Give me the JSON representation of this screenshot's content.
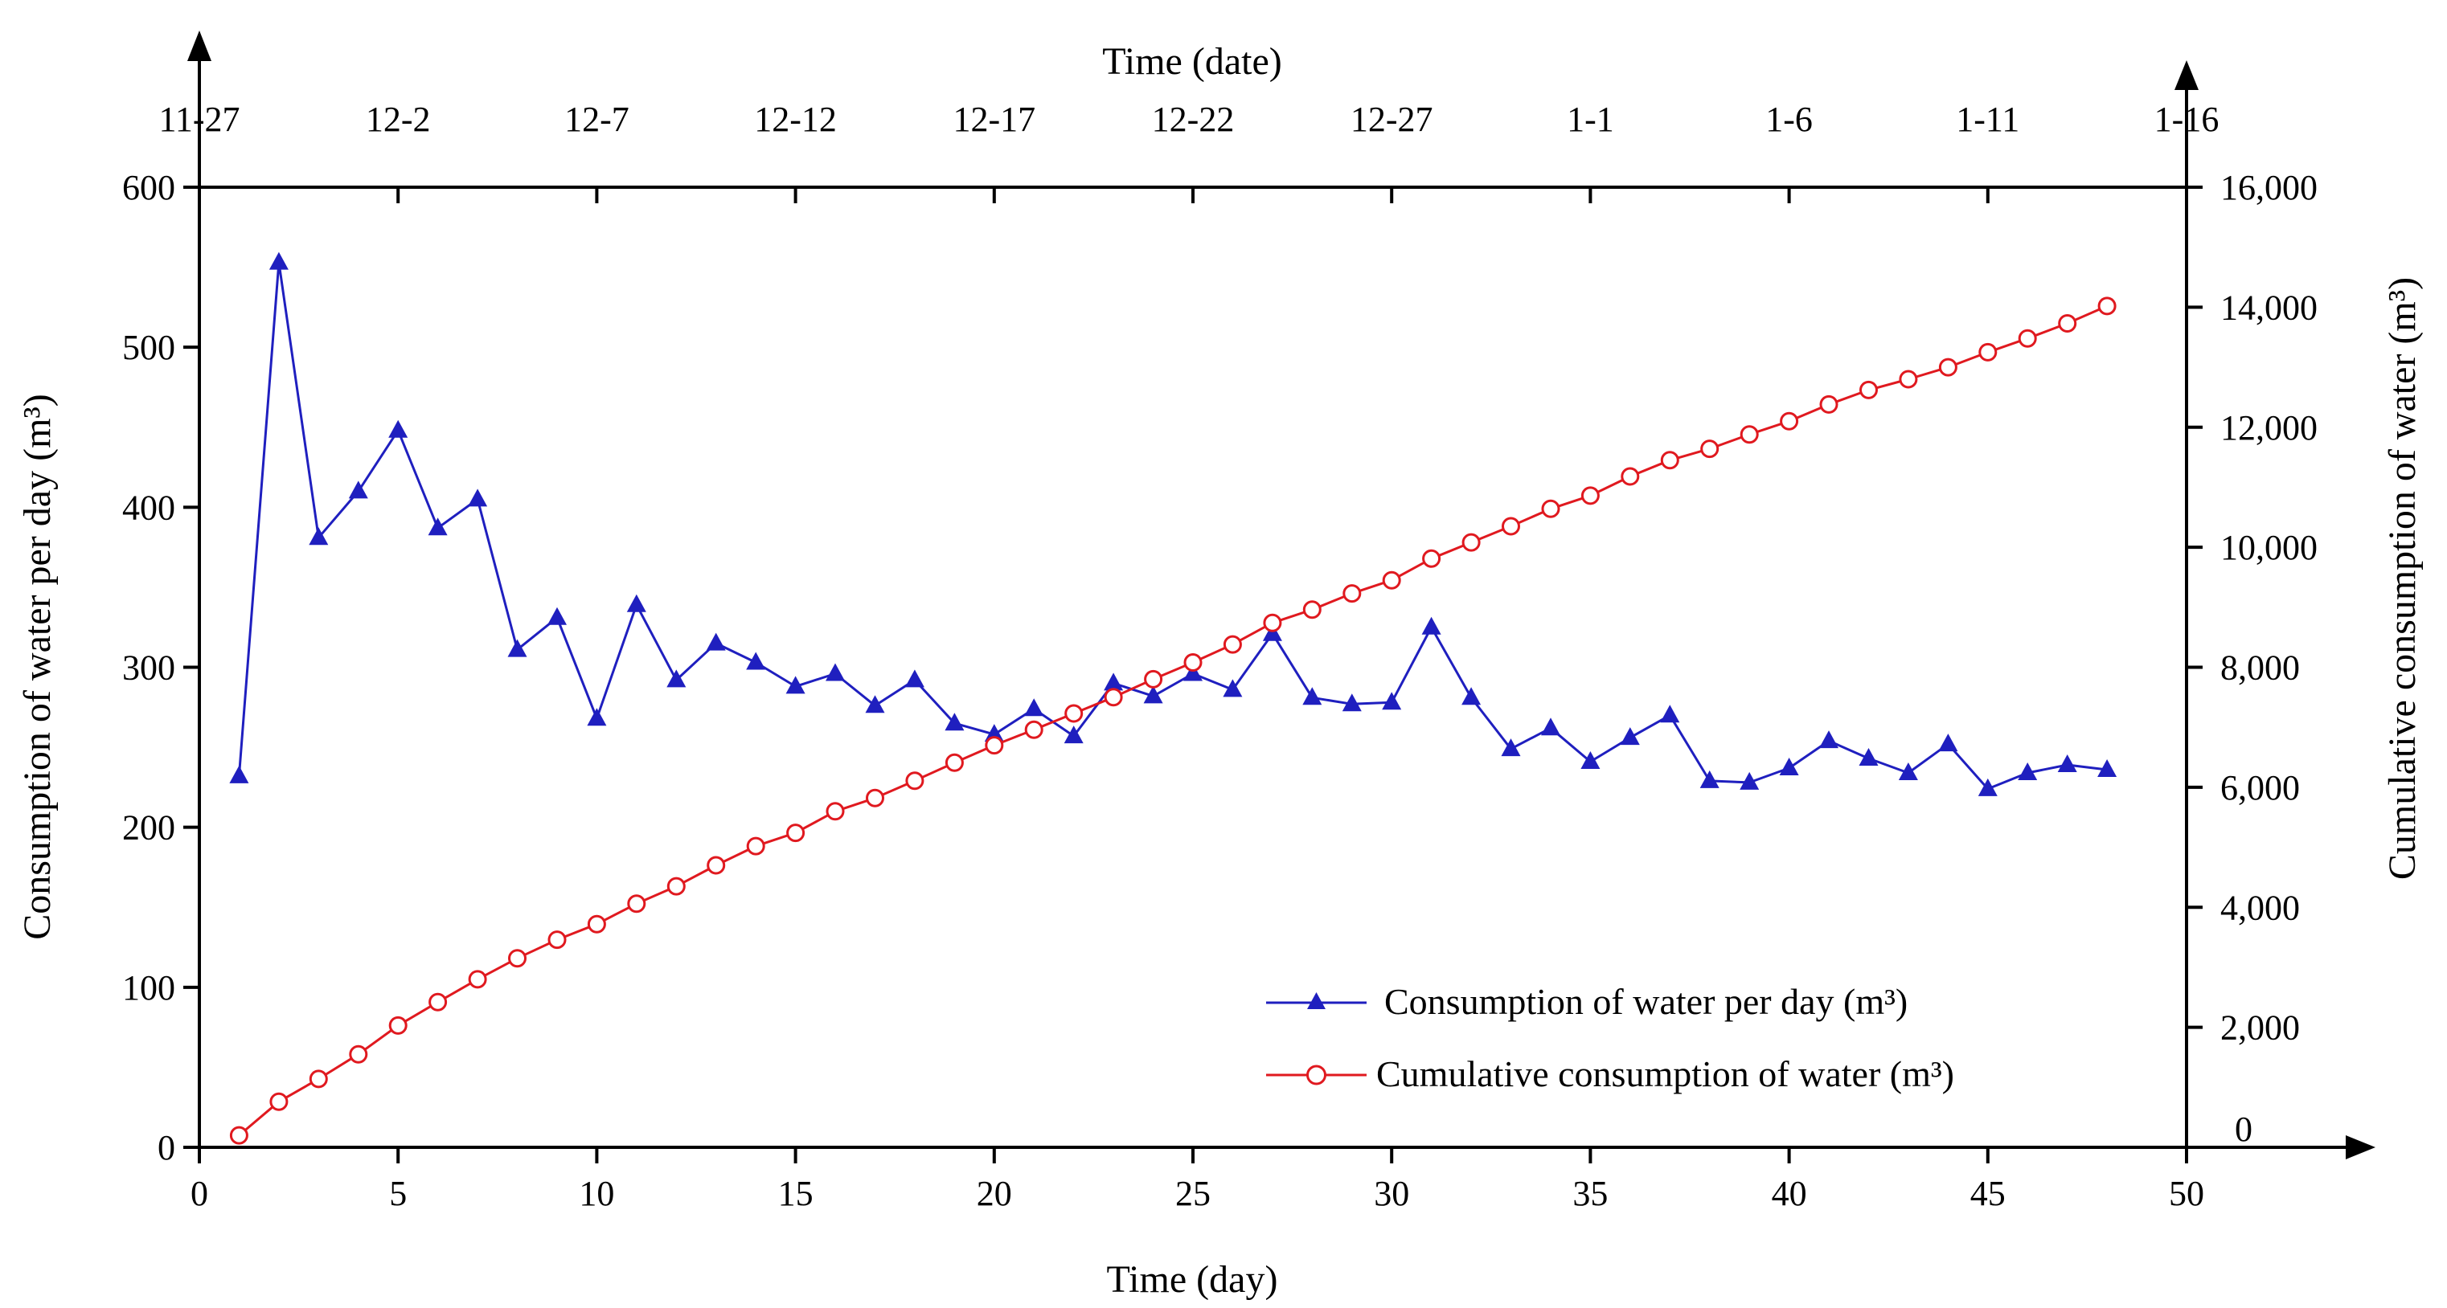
{
  "chart_data": {
    "type": "line",
    "x": [
      1,
      2,
      3,
      4,
      5,
      6,
      7,
      8,
      9,
      10,
      11,
      12,
      13,
      14,
      15,
      16,
      17,
      18,
      19,
      20,
      21,
      22,
      23,
      24,
      25,
      26,
      27,
      28,
      29,
      30,
      31,
      32,
      33,
      34,
      35,
      36,
      37,
      38,
      39,
      40,
      41,
      42,
      43,
      44,
      45,
      46,
      47,
      48
    ],
    "series": [
      {
        "name": "Consumption of water per day (m³)",
        "axis": "left",
        "color": "#1f1fbf",
        "marker": "triangle",
        "values": [
          232,
          553,
          381,
          410,
          448,
          387,
          405,
          311,
          331,
          268,
          339,
          292,
          315,
          303,
          288,
          296,
          276,
          292,
          265,
          258,
          274,
          257,
          290,
          282,
          296,
          286,
          321,
          281,
          277,
          278,
          325,
          281,
          249,
          262,
          241,
          256,
          270,
          229,
          228,
          237,
          254,
          243,
          234,
          252,
          224,
          234,
          239,
          236
        ]
      },
      {
        "name": "Cumulative consumption of water (m³)",
        "axis": "right",
        "color": "#e0191f",
        "marker": "circle",
        "values": [
          200,
          760,
          1140,
          1550,
          2030,
          2420,
          2800,
          3150,
          3460,
          3720,
          4060,
          4350,
          4700,
          5020,
          5240,
          5600,
          5820,
          6110,
          6410,
          6700,
          6960,
          7230,
          7500,
          7800,
          8080,
          8380,
          8740,
          8960,
          9230,
          9450,
          9810,
          10080,
          10350,
          10640,
          10860,
          11180,
          11450,
          11640,
          11880,
          12100,
          12380,
          12620,
          12800,
          13000,
          13250,
          13480,
          13730,
          14020
        ]
      }
    ],
    "title": "",
    "xlabel": "Time (day)",
    "ylabel": "Consumption of water per day (m³)",
    "y2label": "Cumulative consumption of water (m³)",
    "x2label": "Time (date)",
    "xlim": [
      0,
      50
    ],
    "ylim": [
      0,
      600
    ],
    "y2lim": [
      0,
      16000
    ],
    "xticks": [
      0,
      5,
      10,
      15,
      20,
      25,
      30,
      35,
      40,
      45,
      50
    ],
    "xtick_labels": [
      "0",
      "5",
      "10",
      "15",
      "20",
      "25",
      "30",
      "35",
      "40",
      "45",
      "50"
    ],
    "yticks": [
      0,
      100,
      200,
      300,
      400,
      500,
      600
    ],
    "ytick_labels": [
      "0",
      "100",
      "200",
      "300",
      "400",
      "500",
      "600"
    ],
    "y2ticks": [
      0,
      2000,
      4000,
      6000,
      8000,
      10000,
      12000,
      14000,
      16000
    ],
    "y2tick_labels": [
      "0",
      "2,000",
      "4,000",
      "6,000",
      "8,000",
      "10,000",
      "12,000",
      "14,000",
      "16,000"
    ],
    "x2ticks": [
      0,
      5,
      10,
      15,
      20,
      25,
      30,
      35,
      40,
      45,
      50
    ],
    "x2tick_labels": [
      "11-27",
      "12-2",
      "12-7",
      "12-12",
      "12-17",
      "12-22",
      "12-27",
      "1-1",
      "1-6",
      "1-11",
      "1-16"
    ],
    "grid": false,
    "legend": {
      "position": "bottom-right"
    }
  }
}
